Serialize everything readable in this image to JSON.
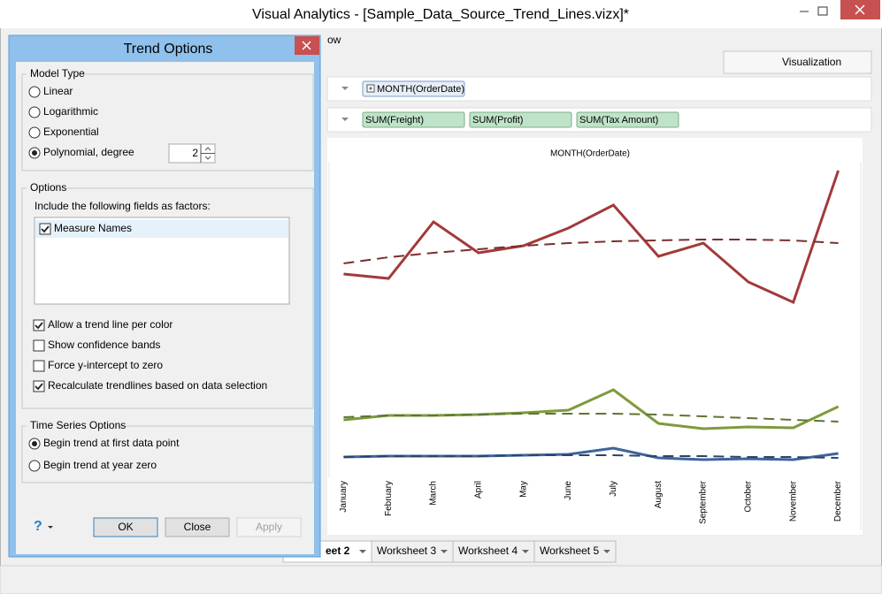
{
  "window": {
    "title": "Visual Analytics - [Sample_Data_Source_Trend_Lines.vizx]*",
    "menu_fragment": "ow",
    "tab": "Visualization"
  },
  "shelves": {
    "rows": [
      "MONTH(OrderDate)"
    ],
    "columns": [
      "SUM(Freight)",
      "SUM(Profit)",
      "SUM(Tax Amount)"
    ]
  },
  "chart_data": {
    "type": "line",
    "title": "MONTH(OrderDate)",
    "categories": [
      "January",
      "February",
      "March",
      "April",
      "May",
      "June",
      "July",
      "August",
      "September",
      "October",
      "November",
      "December"
    ],
    "ylim": [
      0,
      357
    ],
    "series": [
      {
        "color": "#a33a3a",
        "line": "solid",
        "values": [
          230,
          225,
          289,
          254,
          262,
          282,
          308,
          250,
          265,
          221,
          198,
          347
        ]
      },
      {
        "color": "#7a2e2e",
        "line": "dashed",
        "values": [
          242,
          249,
          254,
          258,
          262,
          265,
          267,
          268,
          269,
          269,
          268,
          265
        ]
      },
      {
        "color": "#7d9b3c",
        "line": "solid",
        "values": [
          65,
          70,
          70,
          71,
          73,
          76,
          99,
          61,
          55,
          57,
          56,
          80
        ]
      },
      {
        "color": "#5e7434",
        "line": "dashed",
        "values": [
          68,
          70,
          70,
          71,
          72,
          72,
          72,
          71,
          69,
          67,
          65,
          63
        ]
      },
      {
        "color": "#3e649c",
        "line": "solid",
        "values": [
          23,
          24,
          24,
          24,
          25,
          26,
          33,
          22,
          20,
          21,
          20,
          27
        ]
      },
      {
        "color": "#2d4466",
        "line": "dashed",
        "values": [
          23,
          24,
          24,
          24,
          25,
          25,
          25,
          24,
          24,
          23,
          23,
          22
        ]
      }
    ]
  },
  "sheet_tabs": [
    "eet 2",
    "Worksheet 3",
    "Worksheet 4",
    "Worksheet 5"
  ],
  "dialog": {
    "title": "Trend Options",
    "model_type": {
      "label": "Model Type",
      "options": [
        {
          "label": "Linear",
          "selected": false
        },
        {
          "label": "Logarithmic",
          "selected": false
        },
        {
          "label": "Exponential",
          "selected": false
        },
        {
          "label": "Polynomial, degree",
          "selected": true
        }
      ],
      "degree": 2
    },
    "options": {
      "label": "Options",
      "factors_label": "Include the following fields as factors:",
      "factors": [
        {
          "label": "Measure Names",
          "checked": true
        }
      ],
      "checkboxes": [
        {
          "label": "Allow a trend line per color",
          "checked": true
        },
        {
          "label": "Show confidence bands",
          "checked": false
        },
        {
          "label": "Force y-intercept to zero",
          "checked": false
        },
        {
          "label": "Recalculate trendlines based on data selection",
          "checked": true
        }
      ]
    },
    "time_series": {
      "label": "Time Series Options",
      "options": [
        {
          "label": "Begin trend at first data point",
          "selected": true
        },
        {
          "label": "Begin trend at year zero",
          "selected": false
        }
      ]
    },
    "help": "?",
    "buttons": [
      {
        "label": "OK",
        "enabled": true
      },
      {
        "label": "Close",
        "enabled": true
      },
      {
        "label": "Apply",
        "enabled": false
      }
    ]
  }
}
